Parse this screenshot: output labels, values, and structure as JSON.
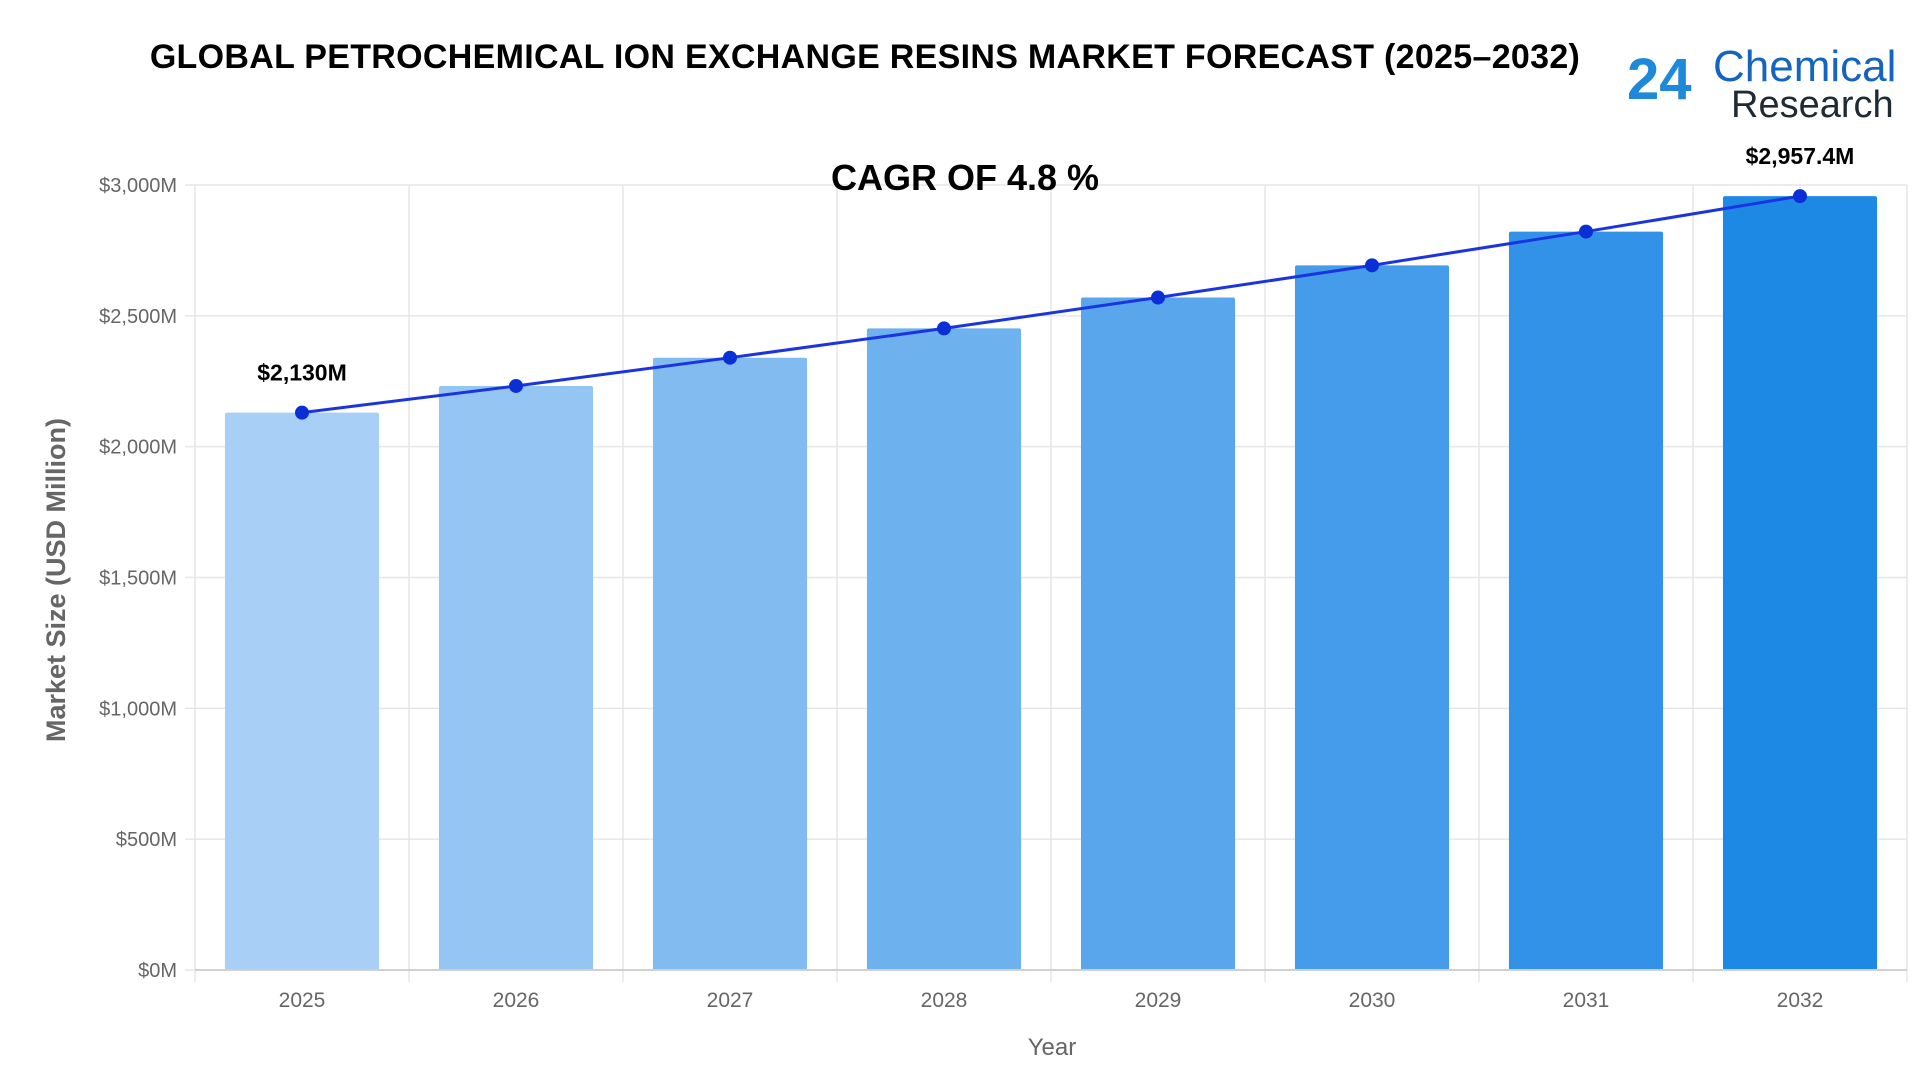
{
  "title": "GLOBAL PETROCHEMICAL ION EXCHANGE RESINS MARKET FORECAST (2025–2032)",
  "logo": {
    "number": "24",
    "line1": "Chemical",
    "line2": "Research"
  },
  "colors": {
    "line": "#1a35e0",
    "point": "#0b2fd6",
    "bar_start": "#a8cff5",
    "bar_end": "#1e88e5",
    "grid": "#e6e6e6",
    "axis_text": "#666666"
  },
  "chart_data": {
    "type": "bar",
    "annotation": "CAGR OF 4.8 %",
    "categories": [
      "2025",
      "2026",
      "2027",
      "2028",
      "2029",
      "2030",
      "2031",
      "2032"
    ],
    "values": [
      2130,
      2232,
      2340,
      2452,
      2570,
      2693,
      2822,
      2957.4
    ],
    "line_values": [
      2130,
      2232,
      2340,
      2452,
      2570,
      2693,
      2822,
      2957.4
    ],
    "data_labels": {
      "2025": "$2,130M",
      "2032": "$2,957.4M"
    },
    "xlabel": "Year",
    "ylabel": "Market Size (USD Million)",
    "ylim": [
      0,
      3000
    ],
    "yticks": [
      0,
      500,
      1000,
      1500,
      2000,
      2500,
      3000
    ],
    "ytick_labels": [
      "$0M",
      "$500M",
      "$1,000M",
      "$1,500M",
      "$2,000M",
      "$2,500M",
      "$3,000M"
    ],
    "grid": true,
    "legend": "none"
  }
}
